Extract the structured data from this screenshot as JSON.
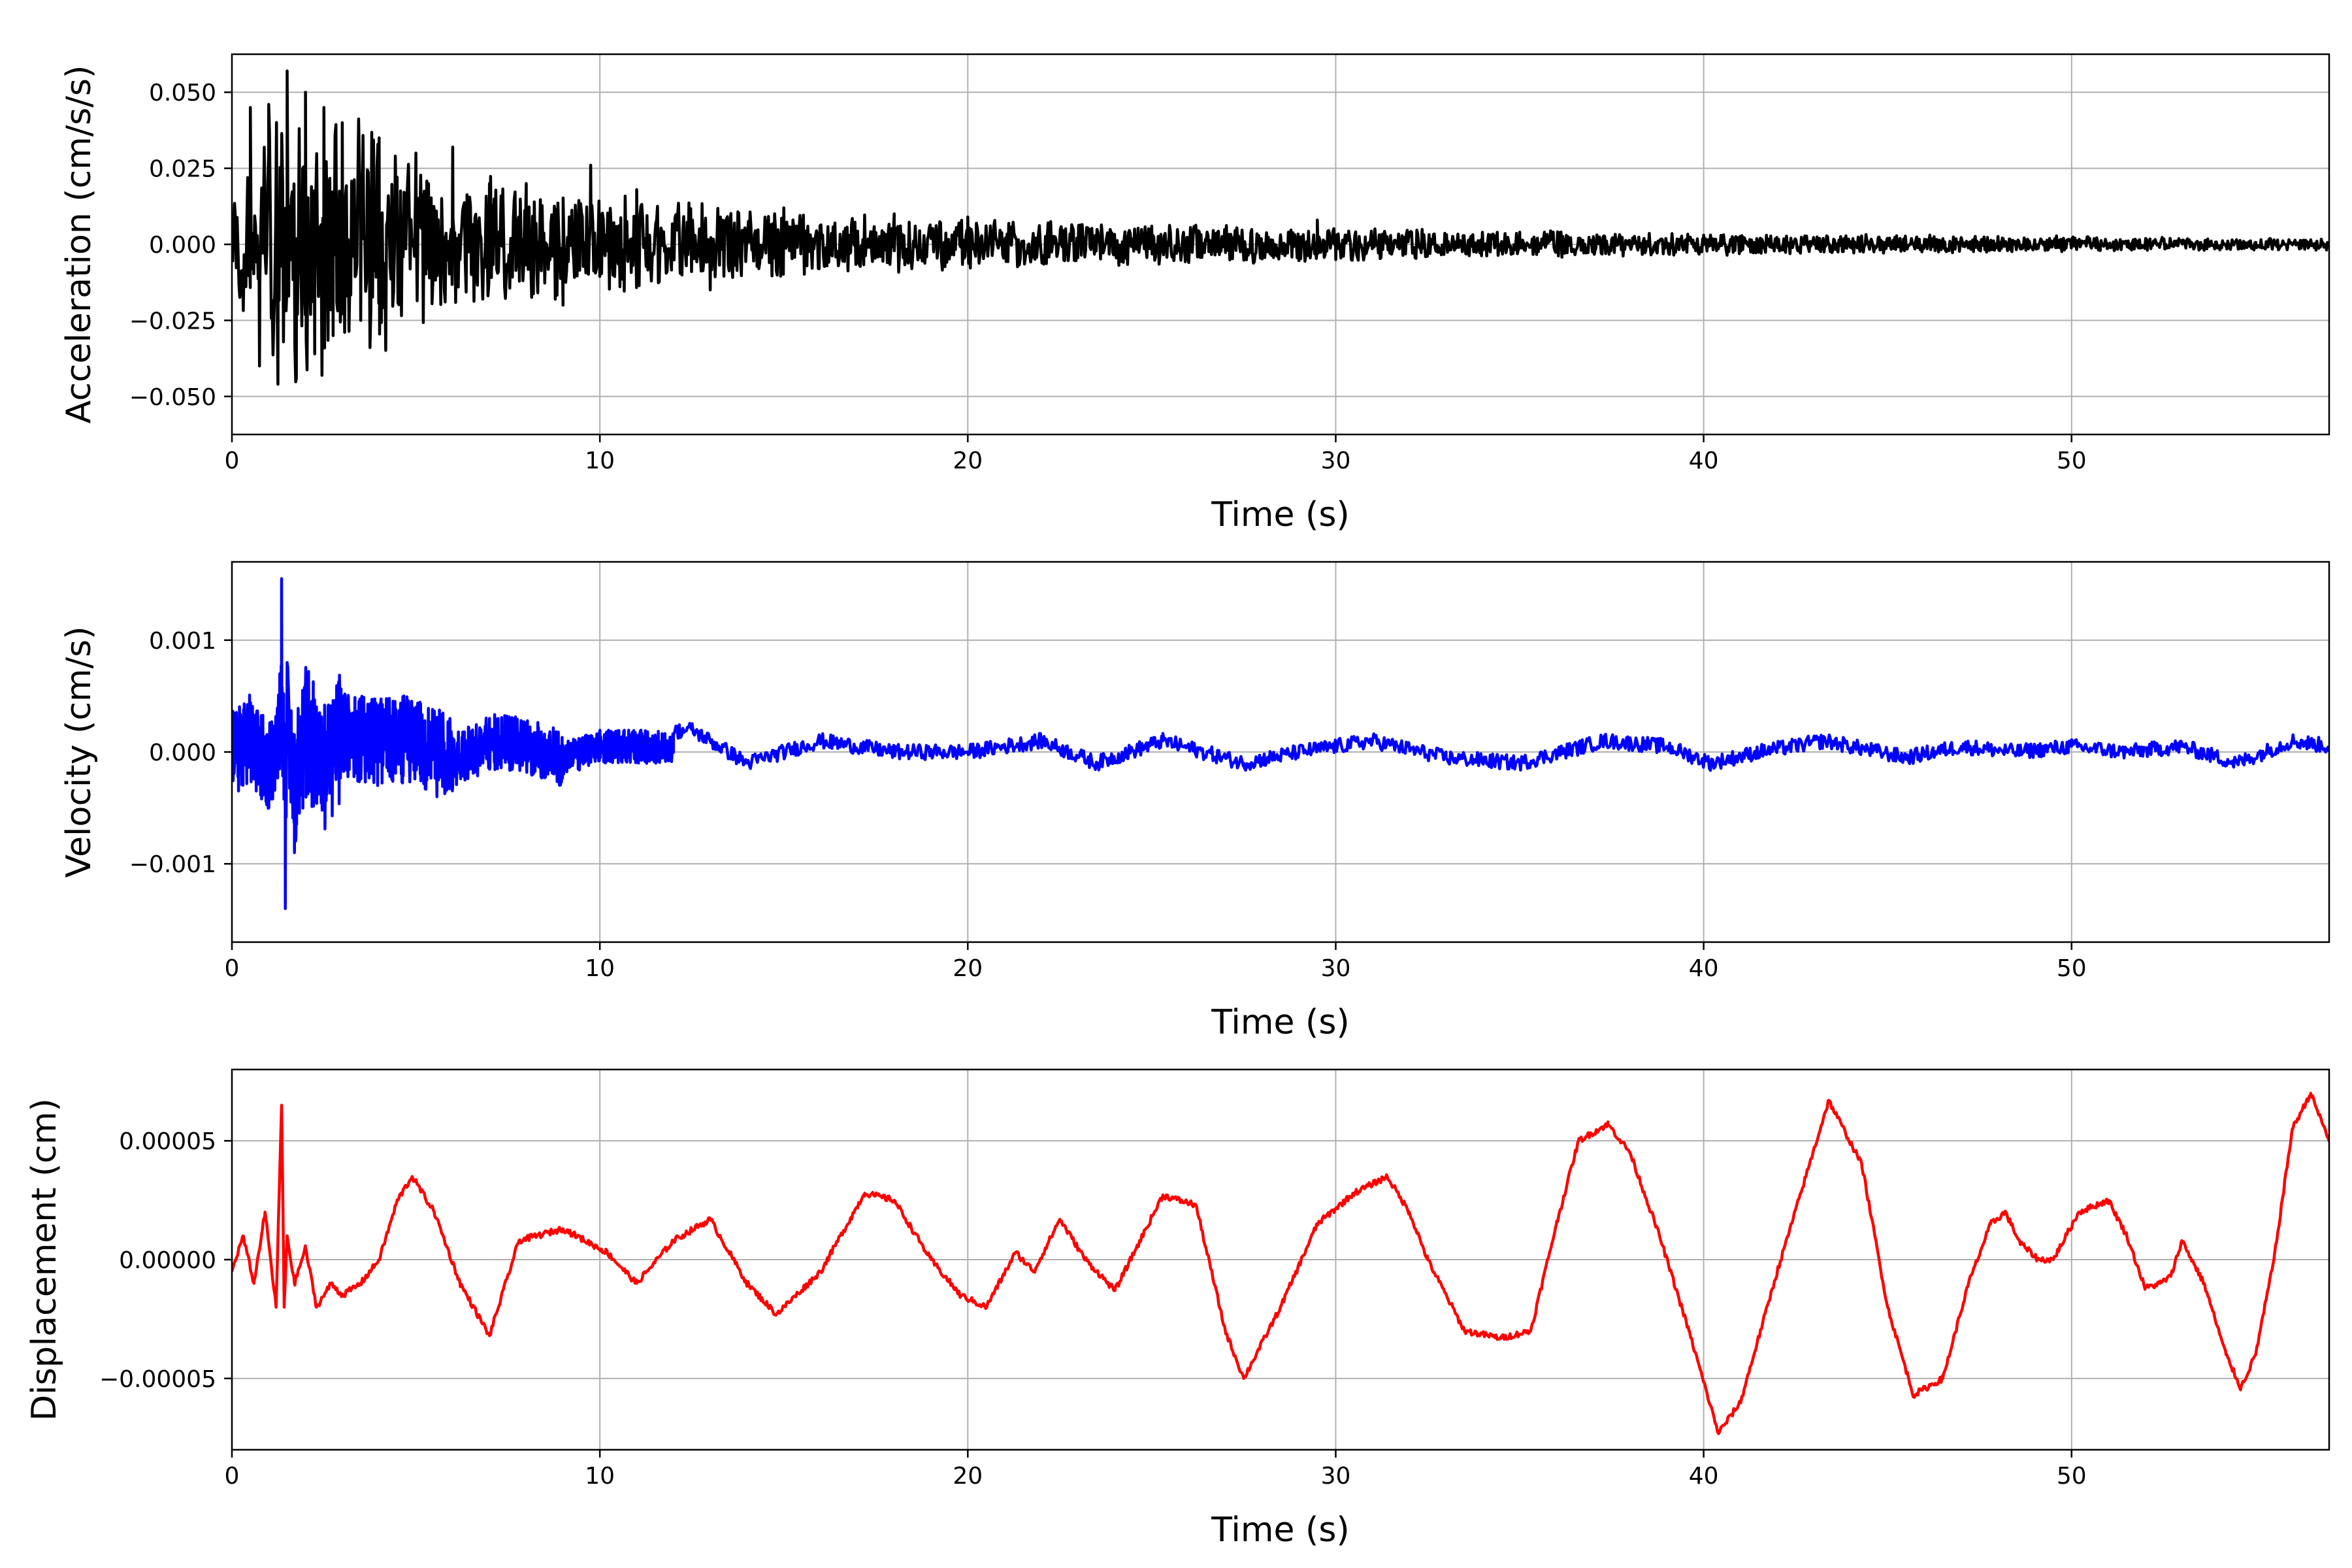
{
  "figure": {
    "background": "#ffffff",
    "grid_color": "#b0b0b0"
  },
  "chart_data": [
    {
      "type": "line",
      "xlabel": "Time (s)",
      "ylabel": "Acceleration (cm/s/s)",
      "xlim": [
        0,
        57
      ],
      "ylim": [
        -0.0625,
        0.0625
      ],
      "xticks": [
        0,
        10,
        20,
        30,
        40,
        50
      ],
      "xtick_labels": [
        "0",
        "10",
        "20",
        "30",
        "40",
        "50"
      ],
      "yticks": [
        0.05,
        0.025,
        0,
        -0.025,
        -0.05
      ],
      "ytick_labels": [
        "0.050",
        "0.025",
        "0.000",
        "−0.025",
        "−0.050"
      ],
      "grid": true,
      "series": [
        {
          "color": "#000000",
          "envelope": [
            [
              0,
              0.02
            ],
            [
              1.5,
              0.057
            ],
            [
              3.5,
              0.045
            ],
            [
              6,
              0.025
            ],
            [
              10,
              0.018
            ],
            [
              15,
              0.012
            ],
            [
              20,
              0.009
            ],
            [
              30,
              0.006
            ],
            [
              40,
              0.004
            ],
            [
              57,
              0.002
            ]
          ],
          "x": [
            0.0,
            0.25,
            0.5,
            0.75,
            1.0,
            1.25,
            1.5,
            1.75,
            2.0,
            2.25,
            2.5,
            2.75,
            3.0,
            3.5,
            4.0,
            5.0,
            6.0,
            7.0,
            8.0,
            9.0,
            9.75,
            10.0,
            11.0,
            13.0,
            15.0,
            18.0,
            20.0,
            25.0,
            29.5,
            30.0,
            35.0,
            40.0,
            45.0,
            50.0,
            57.0
          ],
          "y": [
            0.005,
            -0.015,
            0.045,
            -0.04,
            0.046,
            -0.046,
            0.057,
            -0.044,
            0.05,
            -0.036,
            0.045,
            -0.03,
            0.04,
            -0.025,
            0.035,
            0.03,
            0.032,
            0.02,
            0.02,
            -0.02,
            0.026,
            0.01,
            0.018,
            -0.015,
            0.012,
            0.01,
            0.009,
            0.006,
            0.008,
            -0.005,
            0.004,
            0.003,
            0.002,
            0.001,
            0.0
          ]
        }
      ]
    },
    {
      "type": "line",
      "xlabel": "Time (s)",
      "ylabel": "Velocity (cm/s)",
      "xlim": [
        0,
        57
      ],
      "ylim": [
        -0.0017,
        0.0017
      ],
      "xticks": [
        0,
        10,
        20,
        30,
        40,
        50
      ],
      "xtick_labels": [
        "0",
        "10",
        "20",
        "30",
        "40",
        "50"
      ],
      "yticks": [
        0.001,
        0,
        -0.001
      ],
      "ytick_labels": [
        "0.001",
        "0.000",
        "−0.001"
      ],
      "grid": true,
      "series": [
        {
          "color": "#0000ff",
          "x": [
            0.0,
            0.5,
            1.0,
            1.3,
            1.35,
            1.45,
            1.5,
            1.7,
            2.0,
            2.5,
            3.0,
            4.0,
            5.0,
            6.0,
            7.0,
            8.0,
            9.0,
            10.0,
            11.0,
            12.5,
            14.0,
            16.0,
            18.0,
            20.0,
            22.0,
            23.5,
            25.3,
            27.5,
            29.0,
            31.0,
            33.0,
            35.0,
            37.3,
            39.0,
            40.2,
            41.5,
            43.3,
            45.5,
            47.0,
            48.5,
            50.0,
            51.5,
            53.0,
            54.5,
            56.0,
            57.0
          ],
          "y": [
            0.0,
            0.0004,
            -0.0005,
            0.0007,
            0.00155,
            -0.0014,
            0.0008,
            -0.0009,
            0.0006,
            -0.0005,
            0.0005,
            0.0003,
            0.0004,
            -0.0003,
            0.0003,
            0.0002,
            -0.0002,
            0.00015,
            0.00015,
            0.0002,
            -0.0001,
            0.0001,
            0.0,
            0.0,
            0.0001,
            -0.0001,
            0.0001,
            -0.0001,
            0.0,
            0.0001,
            -5e-05,
            -0.0001,
            0.0001,
            5e-05,
            -0.0001,
            0.0,
            0.0001,
            -5e-05,
            5e-05,
            0.0,
            5e-05,
            0.0,
            5e-05,
            -0.0001,
            0.0001,
            5e-05
          ]
        }
      ]
    },
    {
      "type": "line",
      "xlabel": "Time (s)",
      "ylabel": "Displacement (cm)",
      "xlim": [
        0,
        57
      ],
      "ylim": [
        -8e-05,
        8e-05
      ],
      "xticks": [
        0,
        10,
        20,
        30,
        40,
        50
      ],
      "xtick_labels": [
        "0",
        "10",
        "20",
        "30",
        "40",
        "50"
      ],
      "yticks": [
        5e-05,
        0,
        -5e-05
      ],
      "ytick_labels": [
        "0.00005",
        "0.00000",
        "−0.00005"
      ],
      "grid": true,
      "series": [
        {
          "color": "#ff0000",
          "x": [
            0.0,
            0.3,
            0.6,
            0.9,
            1.2,
            1.35,
            1.42,
            1.5,
            1.7,
            2.0,
            2.3,
            2.7,
            3.0,
            3.5,
            4.0,
            4.5,
            4.9,
            5.5,
            6.2,
            7.0,
            7.8,
            9.0,
            10.2,
            11.0,
            12.0,
            13.0,
            14.0,
            14.8,
            16.0,
            17.2,
            18.0,
            19.0,
            19.8,
            20.5,
            21.3,
            21.8,
            22.5,
            23.2,
            24.0,
            25.3,
            26.2,
            27.0,
            27.5,
            28.5,
            29.5,
            30.5,
            31.4,
            32.0,
            32.5,
            33.5,
            34.5,
            35.3,
            36.0,
            36.6,
            37.4,
            38.0,
            38.8,
            39.6,
            40.4,
            41.0,
            42.0,
            43.4,
            44.3,
            45.0,
            45.7,
            46.5,
            47.2,
            47.8,
            48.2,
            48.6,
            49.1,
            49.5,
            50.2,
            51.0,
            51.5,
            52.0,
            52.4,
            52.7,
            53.0,
            53.6,
            54.2,
            54.6,
            55.0,
            55.5,
            56.0,
            56.5,
            57.0
          ],
          "y": [
            -5e-06,
            1e-05,
            -1e-05,
            2e-05,
            -2e-05,
            6.5e-05,
            -2e-05,
            1e-05,
            -1e-05,
            5e-06,
            -2e-05,
            -1e-05,
            -1.5e-05,
            -1e-05,
            0.0,
            2.5e-05,
            3.5e-05,
            2e-05,
            -1e-05,
            -3.2e-05,
            8e-06,
            1.3e-05,
            3e-06,
            -1e-05,
            8e-06,
            1.7e-05,
            -1e-05,
            -2.3e-05,
            -5e-06,
            2.8e-05,
            2.5e-05,
            0.0,
            -1.5e-05,
            -2e-05,
            3e-06,
            -5e-06,
            1.7e-05,
            0.0,
            -1.3e-05,
            2.7e-05,
            2.3e-05,
            -3e-05,
            -5e-05,
            -2e-05,
            1.5e-05,
            2.8e-05,
            3.5e-05,
            2e-05,
            0.0,
            -3e-05,
            -3.3e-05,
            -3e-05,
            1.5e-05,
            5e-05,
            5.7e-05,
            4.5e-05,
            1e-05,
            -3e-05,
            -7.3e-05,
            -6e-05,
            -5e-06,
            6.7e-05,
            4e-05,
            -2e-05,
            -5.7e-05,
            -5e-05,
            -1e-05,
            1.5e-05,
            2e-05,
            7e-06,
            0.0,
            0.0,
            2e-05,
            2.5e-05,
            1e-05,
            -1.2e-05,
            -1e-05,
            -7e-06,
            8e-06,
            -1e-05,
            -4e-05,
            -5.4e-05,
            -4e-05,
            0.0,
            5.5e-05,
            7e-05,
            5e-05
          ]
        }
      ]
    }
  ]
}
